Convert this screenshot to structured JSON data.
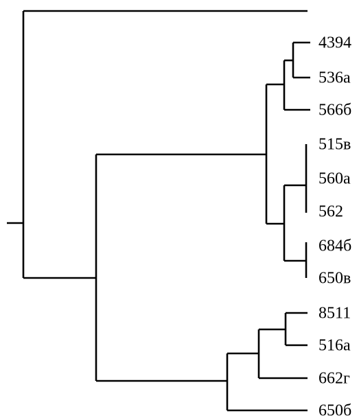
{
  "dendrogram": {
    "leaves": [
      {
        "label": "4394"
      },
      {
        "label": "536a"
      },
      {
        "label": "566б"
      },
      {
        "label": "515в"
      },
      {
        "label": "560a"
      },
      {
        "label": "562"
      },
      {
        "label": "684б"
      },
      {
        "label": "650в"
      },
      {
        "label": "8511"
      },
      {
        "label": "516a"
      },
      {
        "label": "662г"
      },
      {
        "label": "650б"
      }
    ],
    "colors": {
      "line": "#000000",
      "text": "#000000",
      "background": "#ffffff"
    }
  }
}
